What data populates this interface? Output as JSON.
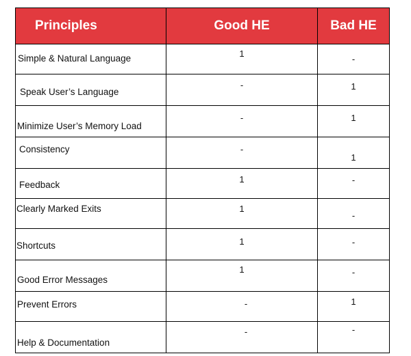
{
  "headers": {
    "principles": "Principles",
    "good_he": "Good HE",
    "bad_he": "Bad HE"
  },
  "rows": [
    {
      "principle": "Simple & Natural Language",
      "good": "1",
      "bad": "-"
    },
    {
      "principle": "Speak User’s Language",
      "good": "-",
      "bad": "1"
    },
    {
      "principle": "Minimize User’s Memory Load",
      "good": "-",
      "bad": "1"
    },
    {
      "principle": "Consistency",
      "good": "-",
      "bad": "1"
    },
    {
      "principle": "Feedback",
      "good": "1",
      "bad": "-"
    },
    {
      "principle": "Clearly Marked Exits",
      "good": "1",
      "bad": "-"
    },
    {
      "principle": "Shortcuts",
      "good": "1",
      "bad": "-"
    },
    {
      "principle": "Good Error Messages",
      "good": "1",
      "bad": "-"
    },
    {
      "principle": "Prevent Errors",
      "good": "-",
      "bad": "1"
    },
    {
      "principle": "Help & Documentation",
      "good": "-",
      "bad": "-"
    }
  ],
  "colors": {
    "header_background": "#e23a3f",
    "header_text": "#ffffff"
  }
}
